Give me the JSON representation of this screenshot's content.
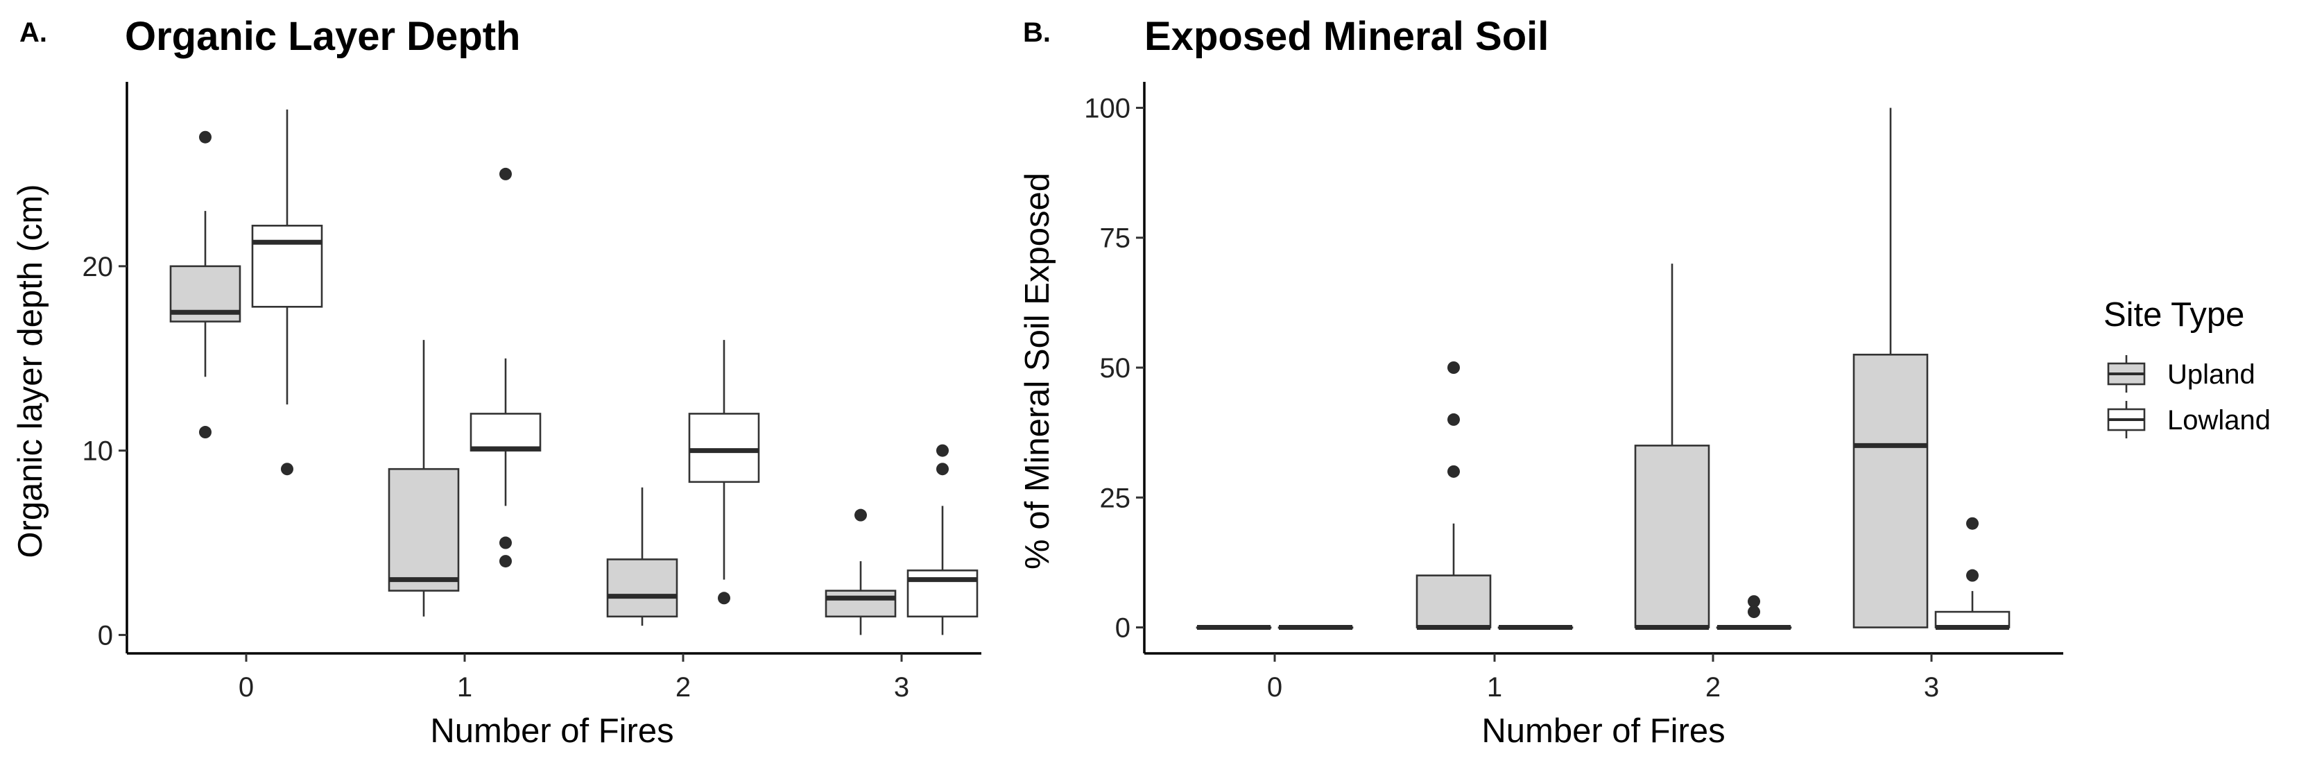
{
  "colors": {
    "upland": "#d3d3d3",
    "lowland": "#ffffff",
    "stroke": "#333333",
    "median": "#2b2b2b"
  },
  "legend": {
    "title": "Site Type",
    "items": [
      {
        "label": "Upland",
        "fill": "#d3d3d3"
      },
      {
        "label": "Lowland",
        "fill": "#ffffff"
      }
    ]
  },
  "chart_data": [
    {
      "type": "boxplot",
      "panel_tag": "A.",
      "title": "Organic Layer Depth",
      "xlabel": "Number of Fires",
      "ylabel": "Organic layer depth (cm)",
      "categories": [
        "0",
        "1",
        "2",
        "3"
      ],
      "yticks": [
        0,
        10,
        20
      ],
      "ylim": [
        -1.0,
        30.0
      ],
      "series": [
        {
          "name": "Upland",
          "boxes": [
            {
              "q1": 17.0,
              "median": 17.5,
              "q3": 20.0,
              "lower": 14.0,
              "upper": 23.0,
              "outliers": [
                27.0,
                11.0
              ]
            },
            {
              "q1": 2.4,
              "median": 3.0,
              "q3": 9.0,
              "lower": 1.0,
              "upper": 16.0,
              "outliers": []
            },
            {
              "q1": 1.0,
              "median": 2.1,
              "q3": 4.1,
              "lower": 0.5,
              "upper": 8.0,
              "outliers": []
            },
            {
              "q1": 1.0,
              "median": 2.0,
              "q3": 2.4,
              "lower": 0.0,
              "upper": 4.0,
              "outliers": [
                6.5
              ]
            }
          ]
        },
        {
          "name": "Lowland",
          "boxes": [
            {
              "q1": 17.8,
              "median": 21.3,
              "q3": 22.2,
              "lower": 12.5,
              "upper": 28.5,
              "outliers": [
                9.0
              ]
            },
            {
              "q1": 10.0,
              "median": 10.1,
              "q3": 12.0,
              "lower": 7.0,
              "upper": 15.0,
              "outliers": [
                25.0,
                5.0,
                4.0
              ]
            },
            {
              "q1": 8.3,
              "median": 10.0,
              "q3": 12.0,
              "lower": 3.0,
              "upper": 16.0,
              "outliers": [
                2.0
              ]
            },
            {
              "q1": 1.0,
              "median": 3.0,
              "q3": 3.5,
              "lower": 0.0,
              "upper": 7.0,
              "outliers": [
                10.0,
                9.0
              ]
            }
          ]
        }
      ]
    },
    {
      "type": "boxplot",
      "panel_tag": "B.",
      "title": "Exposed Mineral Soil",
      "xlabel": "Number of Fires",
      "ylabel": "% of Mineral Soil Exposed",
      "categories": [
        "0",
        "1",
        "2",
        "3"
      ],
      "yticks": [
        0,
        25,
        50,
        75,
        100
      ],
      "ylim": [
        -5.0,
        105.0
      ],
      "series": [
        {
          "name": "Upland",
          "boxes": [
            {
              "q1": 0,
              "median": 0,
              "q3": 0,
              "lower": 0,
              "upper": 0,
              "outliers": []
            },
            {
              "q1": 0,
              "median": 0,
              "q3": 10,
              "lower": 0,
              "upper": 20,
              "outliers": [
                50,
                40,
                30
              ]
            },
            {
              "q1": 0,
              "median": 0,
              "q3": 35,
              "lower": 0,
              "upper": 70,
              "outliers": []
            },
            {
              "q1": 0,
              "median": 35,
              "q3": 52.5,
              "lower": 0,
              "upper": 100,
              "outliers": []
            }
          ]
        },
        {
          "name": "Lowland",
          "boxes": [
            {
              "q1": 0,
              "median": 0,
              "q3": 0,
              "lower": 0,
              "upper": 0,
              "outliers": []
            },
            {
              "q1": 0,
              "median": 0,
              "q3": 0,
              "lower": 0,
              "upper": 0,
              "outliers": []
            },
            {
              "q1": 0,
              "median": 0,
              "q3": 0,
              "lower": 0,
              "upper": 0,
              "outliers": [
                5,
                3
              ]
            },
            {
              "q1": 0,
              "median": 0,
              "q3": 3,
              "lower": 0,
              "upper": 7,
              "outliers": [
                20,
                10
              ]
            }
          ]
        }
      ]
    }
  ]
}
